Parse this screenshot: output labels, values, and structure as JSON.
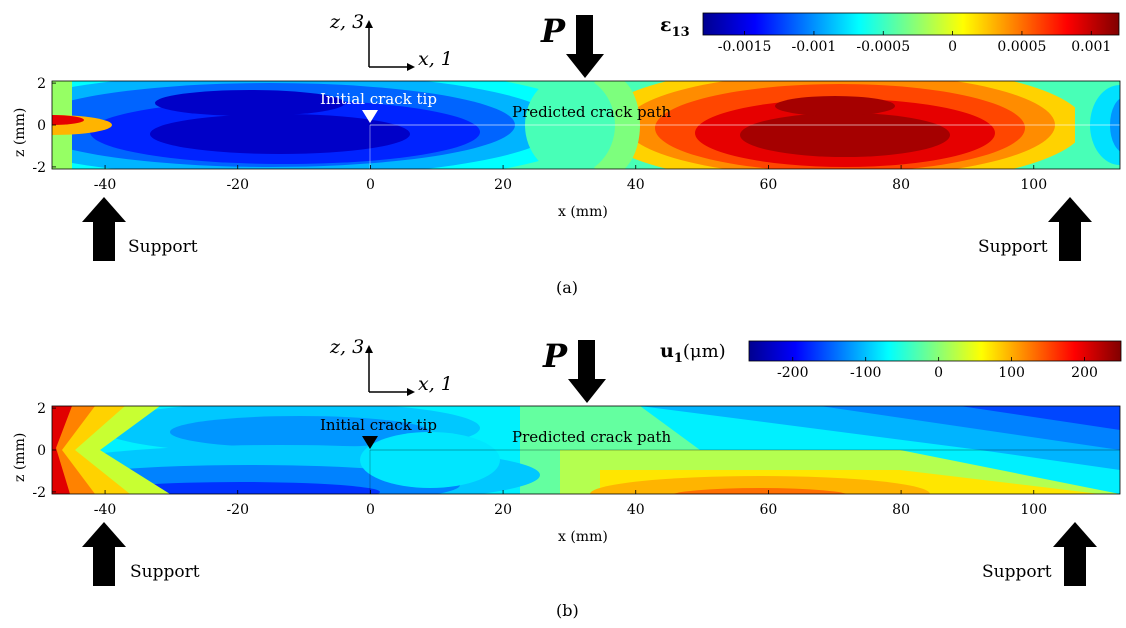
{
  "panels": [
    {
      "caption": "(a)",
      "colorbar_label_main": "ε",
      "colorbar_label_sub": "13",
      "colorbar_label_unit": "",
      "colorbar_ticks": [
        "-0.0015",
        "-0.001",
        "-0.0005",
        "0",
        "0.0005",
        "0.001"
      ],
      "colorbar_range": [
        -0.0018,
        0.0012
      ],
      "load_label": "P",
      "axes_label_z": "z, 3",
      "axes_label_x": "x, 1",
      "crack_tip_label": "Initial crack tip",
      "crack_path_label": "Predicted crack path",
      "support_left": "Support",
      "support_right": "Support",
      "xlabel": "x (mm)",
      "ylabel": "z (mm)",
      "xticks": [
        "-40",
        "-20",
        "0",
        "20",
        "40",
        "60",
        "80",
        "100"
      ],
      "yticks": [
        "2",
        "0",
        "-2"
      ]
    },
    {
      "caption": "(b)",
      "colorbar_label_main": "u",
      "colorbar_label_sub": "1",
      "colorbar_label_unit": "(μm)",
      "colorbar_ticks": [
        "-200",
        "-100",
        "0",
        "100",
        "200"
      ],
      "colorbar_range": [
        -260,
        250
      ],
      "load_label": "P",
      "axes_label_z": "z, 3",
      "axes_label_x": "x, 1",
      "crack_tip_label": "Initial crack tip",
      "crack_path_label": "Predicted crack path",
      "support_left": "Support",
      "support_right": "Support",
      "xlabel": "x (mm)",
      "ylabel": "z (mm)",
      "xticks": [
        "-40",
        "-20",
        "0",
        "20",
        "40",
        "60",
        "80",
        "100"
      ],
      "yticks": [
        "2",
        "0",
        "-2"
      ]
    }
  ],
  "chart_data": [
    {
      "type": "heatmap",
      "quantity": "ε13",
      "xlabel": "x (mm)",
      "ylabel": "z (mm)",
      "xlim": [
        -48,
        113
      ],
      "ylim": [
        -2.1,
        2.1
      ],
      "x_tick_values": [
        -40,
        -20,
        0,
        20,
        40,
        60,
        80,
        100
      ],
      "y_tick_values": [
        2,
        0,
        -2
      ],
      "colorbar_ticks": [
        -0.0015,
        -0.001,
        -0.0005,
        0,
        0.0005,
        0.001
      ],
      "color_range": [
        -0.0018,
        0.0012
      ],
      "colormap": "jet",
      "annotations": {
        "initial_crack_tip_x": 0,
        "crack_path_z": 0,
        "load_x": 33,
        "support_x": [
          -40,
          105
        ]
      },
      "features": [
        {
          "region": "minimum",
          "x": -12,
          "z": -0.4,
          "value": -0.0017
        },
        {
          "region": "maximum",
          "x": 72,
          "z": -0.4,
          "value": 0.0011
        },
        {
          "region": "left end at crack plane",
          "x": -47,
          "z": 0,
          "value": 0.0008
        }
      ]
    },
    {
      "type": "heatmap",
      "quantity": "u1 (μm)",
      "xlabel": "x (mm)",
      "ylabel": "z (mm)",
      "xlim": [
        -48,
        113
      ],
      "ylim": [
        -2.1,
        2.1
      ],
      "x_tick_values": [
        -40,
        -20,
        0,
        20,
        40,
        60,
        80,
        100
      ],
      "y_tick_values": [
        2,
        0,
        -2
      ],
      "colorbar_ticks": [
        -200,
        -100,
        0,
        100,
        200
      ],
      "color_range": [
        -260,
        250
      ],
      "colormap": "jet",
      "annotations": {
        "initial_crack_tip_x": 0,
        "crack_path_z": 0,
        "load_x": 33,
        "support_x": [
          -40,
          105
        ]
      },
      "features": [
        {
          "region": "left end top",
          "x": -48,
          "z": 2,
          "value": 250
        },
        {
          "region": "left end bottom",
          "x": -48,
          "z": -2,
          "value": 200
        },
        {
          "region": "bottom near crack tip",
          "x": -5,
          "z": -2,
          "value": -240
        },
        {
          "region": "right end top",
          "x": 113,
          "z": 2,
          "value": -230
        },
        {
          "region": "bottom near load",
          "x": 65,
          "z": -2,
          "value": 150
        }
      ]
    }
  ],
  "colors": {
    "arrow": "#000000",
    "crack_tip_marker_a": "#ffffff",
    "crack_tip_marker_b": "#000000",
    "crack_path_line": "#ffffff"
  }
}
